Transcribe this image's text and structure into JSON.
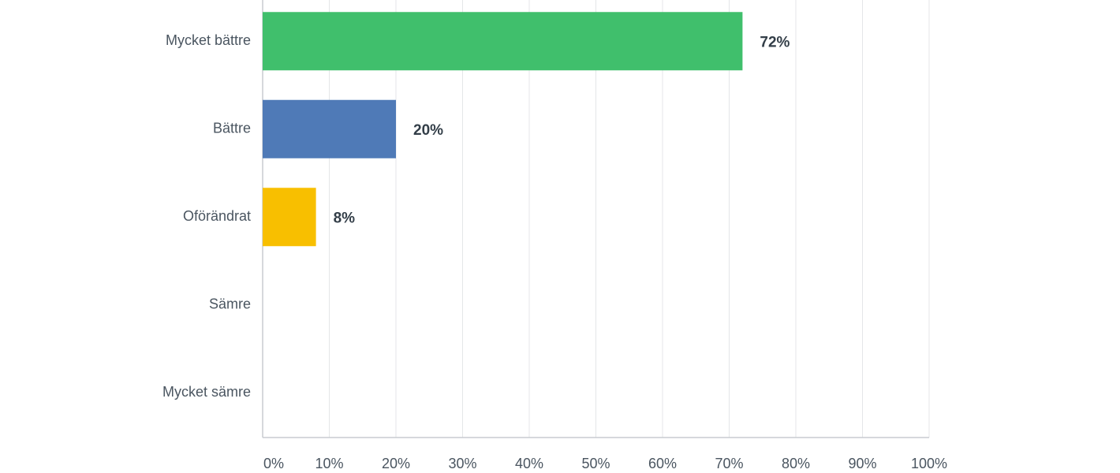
{
  "chart_data": {
    "type": "bar",
    "orientation": "horizontal",
    "categories": [
      "Mycket bättre",
      "Bättre",
      "Oförändrat",
      "Sämre",
      "Mycket sämre"
    ],
    "values": [
      72,
      20,
      8,
      0,
      0
    ],
    "value_labels": [
      "72%",
      "20%",
      "8%",
      null,
      null
    ],
    "colors": [
      "#40bf6c",
      "#4f7ab7",
      "#f8bf00",
      null,
      null
    ],
    "xlim": [
      0,
      100
    ],
    "xticks": [
      {
        "value": 0,
        "label": "0%"
      },
      {
        "value": 10,
        "label": "10%"
      },
      {
        "value": 20,
        "label": "20%"
      },
      {
        "value": 30,
        "label": "30%"
      },
      {
        "value": 40,
        "label": "40%"
      },
      {
        "value": 50,
        "label": "50%"
      },
      {
        "value": 60,
        "label": "60%"
      },
      {
        "value": 70,
        "label": "70%"
      },
      {
        "value": 80,
        "label": "80%"
      },
      {
        "value": 90,
        "label": "90%"
      },
      {
        "value": 100,
        "label": "100%"
      }
    ],
    "grid": true
  }
}
